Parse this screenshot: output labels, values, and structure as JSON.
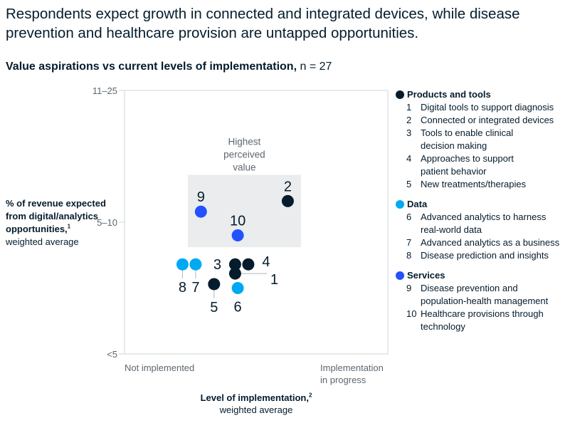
{
  "title": "Respondents expect growth in connected and integrated devices, while disease prevention and healthcare provision are untapped opportunities.",
  "subtitle": {
    "bold": "Value aspirations vs current levels of implementation,",
    "regular": " n = 27"
  },
  "chart_data": {
    "type": "scatter",
    "y_axis": {
      "label_bold": "% of revenue expected from digital/analytics opportunities,",
      "label_footnote": "1",
      "label_regular": "weighted average",
      "tick_labels": [
        "11–25",
        "5–10",
        "<5"
      ],
      "range": [
        0,
        2
      ]
    },
    "x_axis": {
      "label_bold": "Level of implementation,",
      "label_footnote": "2",
      "label_regular": "weighted average",
      "tick_labels": [
        "Not implemented",
        "Implementation in progress"
      ],
      "range": [
        0,
        1
      ]
    },
    "highlight_box": {
      "label": "Highest perceived value",
      "x_range": [
        0.24,
        0.67
      ],
      "y_range": [
        0.81,
        1.36
      ]
    },
    "groups": [
      {
        "name": "Products and tools",
        "color": "#051c2c"
      },
      {
        "name": "Data",
        "color": "#00a9f4"
      },
      {
        "name": "Services",
        "color": "#2251ff"
      }
    ],
    "points": [
      {
        "id": "1",
        "group": 0,
        "x": 0.42,
        "y": 0.61
      },
      {
        "id": "2",
        "group": 0,
        "x": 0.62,
        "y": 1.16
      },
      {
        "id": "3",
        "group": 0,
        "x": 0.42,
        "y": 0.68
      },
      {
        "id": "4",
        "group": 0,
        "x": 0.47,
        "y": 0.68
      },
      {
        "id": "5",
        "group": 0,
        "x": 0.34,
        "y": 0.53
      },
      {
        "id": "6",
        "group": 1,
        "x": 0.43,
        "y": 0.5
      },
      {
        "id": "7",
        "group": 1,
        "x": 0.27,
        "y": 0.68
      },
      {
        "id": "8",
        "group": 1,
        "x": 0.22,
        "y": 0.68
      },
      {
        "id": "9",
        "group": 2,
        "x": 0.29,
        "y": 1.08
      },
      {
        "id": "10",
        "group": 2,
        "x": 0.43,
        "y": 0.9
      }
    ]
  },
  "legend": [
    {
      "name": "Products and tools",
      "color": "#051c2c",
      "items": [
        {
          "num": "1",
          "text": "Digital tools to support diagnosis"
        },
        {
          "num": "2",
          "text": "Connected or integrated devices"
        },
        {
          "num": "3",
          "text": "Tools to enable clinical decision making"
        },
        {
          "num": "4",
          "text": "Approaches to support patient behavior"
        },
        {
          "num": "5",
          "text": "New treatments/therapies"
        }
      ]
    },
    {
      "name": "Data",
      "color": "#00a9f4",
      "items": [
        {
          "num": "6",
          "text": "Advanced analytics to harness real-world data"
        },
        {
          "num": "7",
          "text": "Advanced analytics as a business"
        },
        {
          "num": "8",
          "text": "Disease prediction and insights"
        }
      ]
    },
    {
      "name": "Services",
      "color": "#2251ff",
      "items": [
        {
          "num": "9",
          "text": "Disease prevention and population-health management"
        },
        {
          "num": "10",
          "text": "Healthcare provisions through technology"
        }
      ]
    }
  ]
}
